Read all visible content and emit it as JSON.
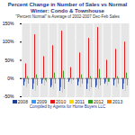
{
  "chart_data": {
    "type": "bar",
    "title": "Percent Change in Number of Sales vs Normal Winter: Condo & Townhouse",
    "subtitle": "\"Percent Normal\" is Average of 2002-2007 Dec-Feb Sales",
    "caption": "Compiled by Agents for Home Buyers LLC",
    "categories": [
      null,
      null,
      null,
      null,
      null,
      null,
      null,
      null,
      null,
      null,
      null,
      null
    ],
    "series": [
      {
        "name": "2008",
        "color": "#1f3f99",
        "values": [
          -20,
          -30,
          -15,
          -25,
          -35,
          -10,
          -20,
          -30,
          -25,
          -15,
          -20,
          -30
        ]
      },
      {
        "name": "2009",
        "color": "#3399ff",
        "values": [
          -10,
          -15,
          -5,
          -20,
          -25,
          -5,
          -10,
          -15,
          -20,
          -10,
          -5,
          -15
        ]
      },
      {
        "name": "2010",
        "color": "#e31a1c",
        "values": [
          40,
          120,
          60,
          90,
          130,
          30,
          70,
          110,
          140,
          50,
          80,
          100
        ]
      },
      {
        "name": "2011",
        "color": "#ffd700",
        "values": [
          -25,
          -35,
          -20,
          -30,
          -40,
          -15,
          -25,
          -35,
          -30,
          -20,
          -25,
          -35
        ]
      },
      {
        "name": "2012",
        "color": "#33a02c",
        "values": [
          5,
          10,
          -5,
          15,
          20,
          0,
          10,
          5,
          25,
          -10,
          5,
          15
        ]
      },
      {
        "name": "2013",
        "color": "#ff7f00",
        "values": [
          -15,
          -20,
          -10,
          -15,
          -30,
          -5,
          -15,
          -25,
          -20,
          -10,
          -15,
          -20
        ]
      }
    ],
    "ylim": [
      -50,
      150
    ],
    "yticks": [
      {
        "value": -50,
        "label": "-50%"
      },
      {
        "value": 0,
        "label": "0%"
      },
      {
        "value": 50,
        "label": "50%"
      },
      {
        "value": 100,
        "label": "100%"
      },
      {
        "value": 150,
        "label": "150%"
      }
    ],
    "grid": true,
    "legend": "bottom",
    "tick_labels": "y"
  }
}
